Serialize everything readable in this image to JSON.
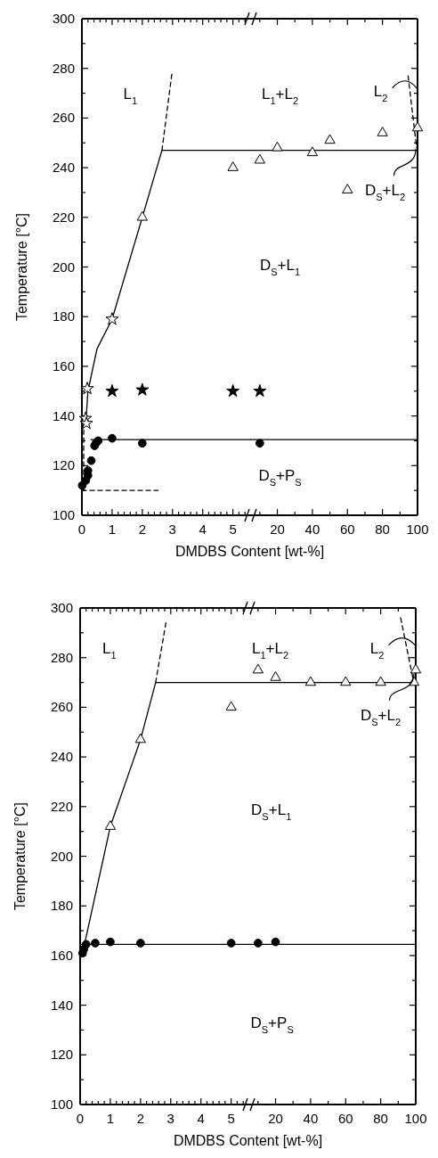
{
  "chart_data": [
    {
      "type": "scatter",
      "ylabel": "Temperature [°C]",
      "xlabel": "DMDBS Content [wt-%]",
      "xlim": [
        0,
        5.6
      ],
      "ylim": [
        100,
        300
      ],
      "xticks": [
        0,
        {
          "value": 0.2,
          "label": null
        },
        {
          "value": 0.4,
          "label": null
        },
        {
          "value": 0.6,
          "label": null
        },
        {
          "value": 0.8,
          "label": null
        },
        1,
        {
          "value": 1.2,
          "label": null
        },
        {
          "value": 1.4,
          "label": null
        },
        {
          "value": 1.6,
          "label": null
        },
        {
          "value": 1.8,
          "label": null
        },
        2,
        {
          "value": 2.2,
          "label": null
        },
        {
          "value": 2.4,
          "label": null
        },
        {
          "value": 2.6,
          "label": null
        },
        {
          "value": 2.8,
          "label": null
        },
        3,
        {
          "value": 3.2,
          "label": null
        },
        {
          "value": 3.4,
          "label": null
        },
        {
          "value": 3.6,
          "label": null
        },
        {
          "value": 3.8,
          "label": null
        },
        4,
        {
          "value": 4.2,
          "label": null
        },
        {
          "value": 4.4,
          "label": null
        },
        {
          "value": 4.6,
          "label": null
        },
        {
          "value": 4.8,
          "label": null
        },
        5,
        {
          "value": 5.2,
          "label": null
        },
        {
          "value": 5.4,
          "label": null
        }
      ],
      "yticks": [
        100,
        {
          "value": 110,
          "label": null
        },
        120,
        {
          "value": 130,
          "label": null
        },
        140,
        {
          "value": 150,
          "label": null
        },
        160,
        {
          "value": 170,
          "label": null
        },
        180,
        {
          "value": 190,
          "label": null
        },
        200,
        {
          "value": 210,
          "label": null
        },
        220,
        {
          "value": 230,
          "label": null
        },
        240,
        {
          "value": 250,
          "label": null
        },
        260,
        {
          "value": 270,
          "label": null
        },
        280,
        {
          "value": 290,
          "label": null
        },
        300
      ],
      "series": [
        {
          "type": "scatter",
          "marker": "triangle",
          "color": "#ffffff",
          "x": [
            2,
            5
          ],
          "values": [
            220,
            240
          ]
        },
        {
          "type": "scatter",
          "marker": "star",
          "color": "#ffffff",
          "x": [
            0.12,
            0.15,
            0.18,
            1
          ],
          "values": [
            139,
            137,
            151,
            179
          ]
        },
        {
          "type": "scatter",
          "marker": "star",
          "color": "#000000",
          "x": [
            1,
            2,
            5
          ],
          "values": [
            150,
            150.5,
            150
          ]
        },
        {
          "type": "scatter",
          "marker": "circle",
          "color": "#000000",
          "x": [
            0.01,
            0.13,
            0.2,
            0.2,
            0.31,
            0.42,
            0.46,
            0.54,
            1,
            2
          ],
          "values": [
            112,
            114,
            116,
            118,
            122,
            128,
            129,
            130,
            131,
            129
          ]
        },
        {
          "type": "line",
          "line_style": "solid",
          "color": "#000000",
          "x": [
            0.14,
            0.2,
            0.5,
            1,
            2,
            2.65
          ],
          "values": [
            139,
            150,
            167,
            179,
            220,
            247
          ]
        },
        {
          "type": "line",
          "line_style": "dashed",
          "color": "#000000",
          "x": [
            2.65,
            2.98
          ],
          "values": [
            247,
            278
          ]
        },
        {
          "type": "line",
          "line_style": "solid",
          "color": "#000000",
          "x": [
            2.65,
            5.6
          ],
          "values": [
            247,
            247
          ]
        },
        {
          "type": "line",
          "line_style": "solid",
          "color": "#000000",
          "x": [
            0.3,
            5.6
          ],
          "values": [
            130.5,
            130.5
          ]
        },
        {
          "type": "line",
          "line_style": "dashed",
          "color": "#000000",
          "x": [
            0.06,
            0.06
          ],
          "values": [
            110,
            138
          ]
        },
        {
          "type": "line",
          "line_style": "dashed",
          "color": "#000000",
          "x": [
            0,
            2.52
          ],
          "values": [
            110,
            110
          ]
        }
      ],
      "annotations": [
        "L$_{1}$"
      ]
    },
    {
      "type": "scatter",
      "xlim": [
        5,
        100
      ],
      "ylim": [
        100,
        300
      ],
      "tick_labels": "x",
      "xticks": [
        {
          "value": 10,
          "label": null
        },
        20,
        {
          "value": 30,
          "label": null
        },
        40,
        {
          "value": 50,
          "label": null
        },
        60,
        {
          "value": 70,
          "label": null
        },
        80,
        {
          "value": 90,
          "label": null
        },
        100
      ],
      "yticks": [
        100,
        {
          "value": 110,
          "label": null
        },
        120,
        {
          "value": 130,
          "label": null
        },
        140,
        {
          "value": 150,
          "label": null
        },
        160,
        {
          "value": 170,
          "label": null
        },
        180,
        {
          "value": 190,
          "label": null
        },
        200,
        {
          "value": 210,
          "label": null
        },
        220,
        {
          "value": 230,
          "label": null
        },
        240,
        {
          "value": 250,
          "label": null
        },
        260,
        {
          "value": 270,
          "label": null
        },
        280,
        {
          "value": 290,
          "label": null
        },
        300
      ],
      "series": [
        {
          "type": "scatter",
          "marker": "triangle",
          "color": "#ffffff",
          "x": [
            10,
            20,
            40,
            50,
            60,
            80,
            100
          ],
          "values": [
            243,
            248,
            246,
            251,
            231,
            254,
            256
          ]
        },
        {
          "type": "scatter",
          "marker": "star",
          "color": "#000000",
          "x": [
            10
          ],
          "values": [
            150
          ]
        },
        {
          "type": "scatter",
          "marker": "circle",
          "color": "#000000",
          "x": [
            10
          ],
          "values": [
            129
          ]
        },
        {
          "type": "line",
          "line_style": "solid",
          "color": "#000000",
          "x": [
            5,
            100
          ],
          "values": [
            247,
            247
          ]
        },
        {
          "type": "line",
          "line_style": "solid",
          "color": "#000000",
          "x": [
            5,
            100
          ],
          "values": [
            130.5,
            130.5
          ]
        },
        {
          "type": "line",
          "line_style": "dashed",
          "color": "#000000",
          "x": [
            94.6,
            99.5
          ],
          "values": [
            277,
            248
          ]
        }
      ],
      "annotations": [
        "L$_{1}$+L$_{2}$",
        "L$_{2}$",
        "D$_{S}$+L$_{2}$",
        "D$_{S}$+L$_{1}$",
        "D$_{S}$+P$_{S}$"
      ]
    },
    {
      "type": "scatter",
      "ylabel": "Temperature [°C]",
      "xlabel": "DMDBS Content [wt-%]",
      "xlim": [
        0,
        5.6
      ],
      "ylim": [
        100,
        300
      ],
      "xticks": [
        0,
        {
          "value": 0.2,
          "label": null
        },
        {
          "value": 0.4,
          "label": null
        },
        {
          "value": 0.6,
          "label": null
        },
        {
          "value": 0.8,
          "label": null
        },
        1,
        {
          "value": 1.2,
          "label": null
        },
        {
          "value": 1.4,
          "label": null
        },
        {
          "value": 1.6,
          "label": null
        },
        {
          "value": 1.8,
          "label": null
        },
        2,
        {
          "value": 2.2,
          "label": null
        },
        {
          "value": 2.4,
          "label": null
        },
        {
          "value": 2.6,
          "label": null
        },
        {
          "value": 2.8,
          "label": null
        },
        3,
        {
          "value": 3.2,
          "label": null
        },
        {
          "value": 3.4,
          "label": null
        },
        {
          "value": 3.6,
          "label": null
        },
        {
          "value": 3.8,
          "label": null
        },
        4,
        {
          "value": 4.2,
          "label": null
        },
        {
          "value": 4.4,
          "label": null
        },
        {
          "value": 4.6,
          "label": null
        },
        {
          "value": 4.8,
          "label": null
        },
        5,
        {
          "value": 5.2,
          "label": null
        },
        {
          "value": 5.4,
          "label": null
        }
      ],
      "yticks": [
        100,
        {
          "value": 110,
          "label": null
        },
        120,
        {
          "value": 130,
          "label": null
        },
        140,
        {
          "value": 150,
          "label": null
        },
        160,
        {
          "value": 170,
          "label": null
        },
        180,
        {
          "value": 190,
          "label": null
        },
        200,
        {
          "value": 210,
          "label": null
        },
        220,
        {
          "value": 230,
          "label": null
        },
        240,
        {
          "value": 250,
          "label": null
        },
        260,
        {
          "value": 270,
          "label": null
        },
        280,
        {
          "value": 290,
          "label": null
        },
        300
      ],
      "series": [
        {
          "type": "scatter",
          "marker": "triangle",
          "color": "#ffffff",
          "x": [
            1,
            2,
            5
          ],
          "values": [
            212,
            247,
            260
          ]
        },
        {
          "type": "scatter",
          "marker": "circle",
          "color": "#000000",
          "x": [
            0.08,
            0.12,
            0.2,
            0.5,
            1,
            2,
            5
          ],
          "values": [
            161,
            162.5,
            164.5,
            165,
            165.5,
            165,
            165
          ]
        },
        {
          "type": "line",
          "line_style": "solid",
          "color": "#000000",
          "x": [
            0.1,
            1,
            2,
            2.5
          ],
          "values": [
            162,
            212,
            247,
            270
          ]
        },
        {
          "type": "line",
          "line_style": "dashed",
          "color": "#000000",
          "x": [
            2.5,
            2.84
          ],
          "values": [
            270,
            294
          ]
        },
        {
          "type": "line",
          "line_style": "solid",
          "color": "#000000",
          "x": [
            2.5,
            5.6
          ],
          "values": [
            270,
            270
          ]
        },
        {
          "type": "line",
          "line_style": "solid",
          "color": "#000000",
          "x": [
            0,
            5.6
          ],
          "values": [
            164.5,
            164.5
          ]
        }
      ],
      "annotations": [
        "L$_{1}$"
      ]
    },
    {
      "type": "scatter",
      "xlim": [
        5,
        100
      ],
      "ylim": [
        100,
        300
      ],
      "tick_labels": "x",
      "xticks": [
        {
          "value": 10,
          "label": null
        },
        20,
        {
          "value": 30,
          "label": null
        },
        40,
        {
          "value": 50,
          "label": null
        },
        60,
        {
          "value": 70,
          "label": null
        },
        80,
        {
          "value": 90,
          "label": null
        },
        100
      ],
      "yticks": [
        100,
        {
          "value": 110,
          "label": null
        },
        120,
        {
          "value": 130,
          "label": null
        },
        140,
        {
          "value": 150,
          "label": null
        },
        160,
        {
          "value": 170,
          "label": null
        },
        180,
        {
          "value": 190,
          "label": null
        },
        200,
        {
          "value": 210,
          "label": null
        },
        220,
        {
          "value": 230,
          "label": null
        },
        240,
        {
          "value": 250,
          "label": null
        },
        260,
        {
          "value": 270,
          "label": null
        },
        280,
        {
          "value": 290,
          "label": null
        },
        300
      ],
      "series": [
        {
          "type": "scatter",
          "marker": "triangle",
          "color": "#ffffff",
          "x": [
            10,
            20,
            40,
            60,
            80,
            99,
            100
          ],
          "values": [
            275,
            272,
            270,
            270,
            270,
            270,
            275
          ]
        },
        {
          "type": "scatter",
          "marker": "circle",
          "color": "#000000",
          "x": [
            10,
            20
          ],
          "values": [
            165,
            165.5
          ]
        },
        {
          "type": "line",
          "line_style": "solid",
          "color": "#000000",
          "x": [
            5,
            100
          ],
          "values": [
            270,
            270
          ]
        },
        {
          "type": "line",
          "line_style": "solid",
          "color": "#000000",
          "x": [
            5,
            100
          ],
          "values": [
            164.5,
            164.5
          ]
        },
        {
          "type": "line",
          "line_style": "dashed",
          "color": "#000000",
          "x": [
            91.4,
            98.3
          ],
          "values": [
            296,
            272
          ]
        }
      ],
      "annotations": [
        "L$_{1}$+L$_{2}$",
        "L$_{2}$",
        "D$_{S}$+L$_{2}$",
        "D$_{S}$+L$_{1}$",
        "D$_{S}$+P$_{S}$"
      ]
    }
  ]
}
